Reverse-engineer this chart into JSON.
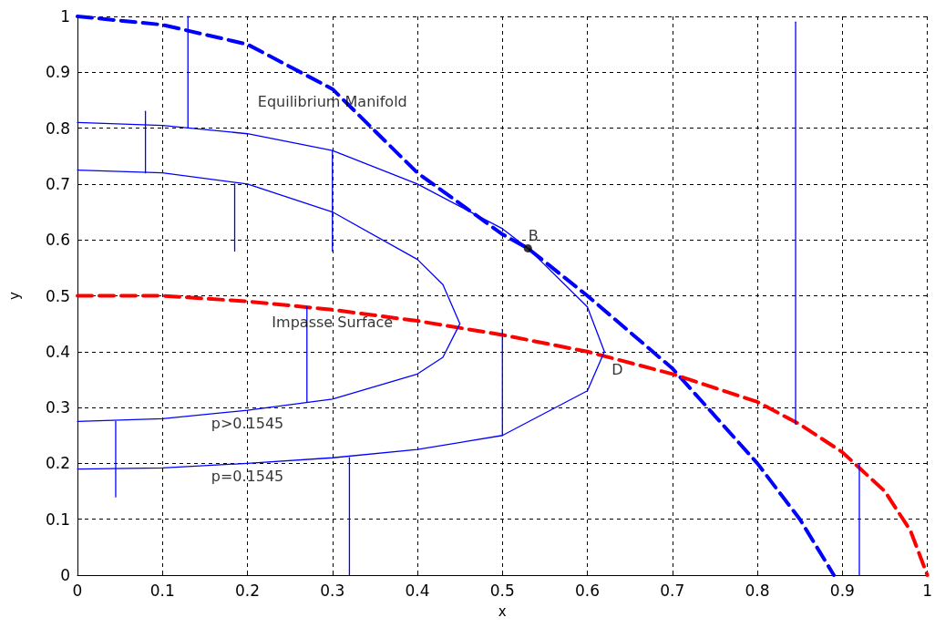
{
  "chart_data": {
    "type": "line",
    "xlabel": "x",
    "ylabel": "y",
    "xlim": [
      0,
      1
    ],
    "ylim": [
      0,
      1
    ],
    "xticks": [
      0,
      0.1,
      0.2,
      0.3,
      0.4,
      0.5,
      0.6,
      0.7,
      0.8,
      0.9,
      1
    ],
    "yticks": [
      0,
      0.1,
      0.2,
      0.3,
      0.4,
      0.5,
      0.6,
      0.7,
      0.8,
      0.9,
      1
    ],
    "grid": true,
    "marker": "none",
    "series": [
      {
        "color": "#0000ff",
        "line_style": "dashed",
        "x": [
          0,
          0.1,
          0.2,
          0.3,
          0.4,
          0.5,
          0.53,
          0.6,
          0.7,
          0.8,
          0.85,
          0.89
        ],
        "values": [
          1,
          0.985,
          0.95,
          0.87,
          0.72,
          0.61,
          0.585,
          0.5,
          0.37,
          0.2,
          0.1,
          0
        ]
      },
      {
        "color": "#ff0000",
        "line_style": "dashed",
        "x": [
          0,
          0.1,
          0.2,
          0.3,
          0.4,
          0.5,
          0.6,
          0.7,
          0.8,
          0.85,
          0.9,
          0.95,
          0.98,
          1
        ],
        "values": [
          0.5,
          0.5,
          0.49,
          0.475,
          0.455,
          0.43,
          0.4,
          0.36,
          0.31,
          0.27,
          0.22,
          0.15,
          0.08,
          0
        ]
      },
      {
        "color": "#0000ff",
        "x": [
          0,
          0.1,
          0.2,
          0.3,
          0.4,
          0.5,
          0.53,
          0.6,
          0.62,
          0.6,
          0.5,
          0.4,
          0.3,
          0.2,
          0.1,
          0
        ],
        "values": [
          0.81,
          0.805,
          0.79,
          0.76,
          0.7,
          0.62,
          0.585,
          0.48,
          0.4,
          0.33,
          0.25,
          0.225,
          0.21,
          0.2,
          0.192,
          0.19
        ]
      },
      {
        "color": "#0000ff",
        "x": [
          0,
          0.1,
          0.2,
          0.3,
          0.4,
          0.43,
          0.45,
          0.43,
          0.4,
          0.3,
          0.2,
          0.1,
          0
        ],
        "values": [
          0.725,
          0.72,
          0.7,
          0.65,
          0.565,
          0.52,
          0.45,
          0.39,
          0.36,
          0.315,
          0.295,
          0.28,
          0.275
        ]
      },
      {
        "color": "#0000ff",
        "x": [
          0.13,
          0.13
        ],
        "values": [
          1,
          0.8
        ]
      },
      {
        "color": "#0000ff",
        "x": [
          0.08,
          0.08
        ],
        "values": [
          0.83,
          0.72
        ]
      },
      {
        "color": "#0000ff",
        "x": [
          0.185,
          0.185
        ],
        "values": [
          0.58,
          0.7
        ]
      },
      {
        "color": "#0000ff",
        "x": [
          0.3,
          0.3
        ],
        "values": [
          0.58,
          0.76
        ]
      },
      {
        "color": "#0000ff",
        "x": [
          0.27,
          0.27
        ],
        "values": [
          0.48,
          0.31
        ]
      },
      {
        "color": "#0000ff",
        "x": [
          0.5,
          0.5
        ],
        "values": [
          0.44,
          0.25
        ]
      },
      {
        "color": "#0000ff",
        "x": [
          0.045,
          0.045
        ],
        "values": [
          0.14,
          0.275
        ]
      },
      {
        "color": "#0000ff",
        "x": [
          0.32,
          0.32
        ],
        "values": [
          0,
          0.21
        ]
      },
      {
        "color": "#0000ff",
        "x": [
          0.845,
          0.845
        ],
        "values": [
          0.99,
          0.27
        ]
      },
      {
        "color": "#0000ff",
        "x": [
          0.92,
          0.92
        ],
        "values": [
          0,
          0.2
        ]
      },
      {
        "type": "scatter",
        "marker": "circle",
        "color": "#000000",
        "x": [
          0.53
        ],
        "values": [
          0.585
        ]
      }
    ],
    "annotations": [
      {
        "text": "Equilibrium Manifold",
        "x": 0.3,
        "y": 0.87
      },
      {
        "text": "Impasse Surface",
        "x": 0.3,
        "y": 0.475
      },
      {
        "text": "B",
        "x": 0.53,
        "y": 0.585
      },
      {
        "text": "D",
        "x": 0.62,
        "y": 0.4
      },
      {
        "text": "p>0.1545",
        "x": 0.2,
        "y": 0.295
      },
      {
        "text": "p=0.1545",
        "x": 0.2,
        "y": 0.2
      }
    ]
  }
}
